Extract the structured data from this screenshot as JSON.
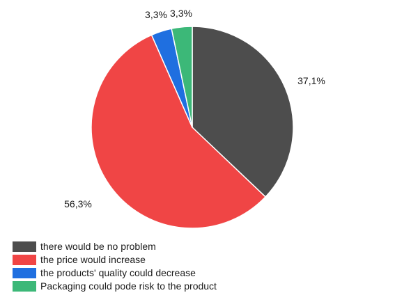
{
  "chart_data": {
    "type": "pie",
    "slices": [
      {
        "label": "there would be no problem",
        "value": 37.1,
        "value_label": "37,1%",
        "color": "#4d4d4d"
      },
      {
        "label": "the price would increase",
        "value": 56.3,
        "value_label": "56,3%",
        "color": "#f04545"
      },
      {
        "label": "the products' quality could decrease",
        "value": 3.3,
        "value_label": "3,3%",
        "color": "#1f6fe0"
      },
      {
        "label": "Packaging could pode risk to the product",
        "value": 3.3,
        "value_label": "3,3%",
        "color": "#3cb878"
      }
    ],
    "start": "top, clockwise",
    "legend_position": "bottom-left"
  }
}
